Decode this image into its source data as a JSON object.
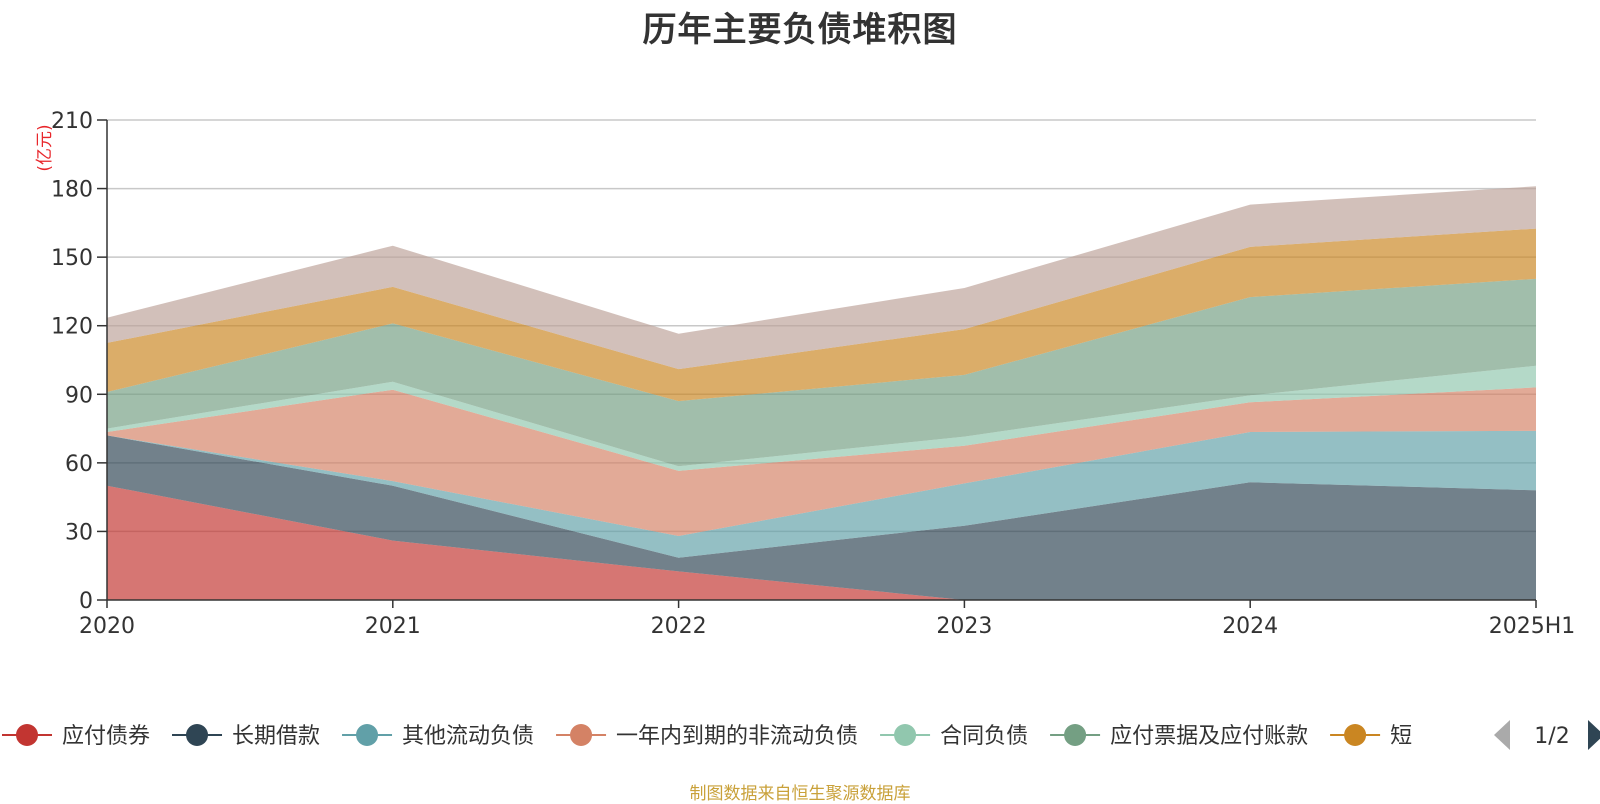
{
  "chart_data": {
    "type": "area",
    "title": "历年主要负债堆积图",
    "ylabel": "(亿元)",
    "xlabel": "",
    "categories": [
      "2020",
      "2021",
      "2022",
      "2023",
      "2024",
      "2025H1"
    ],
    "ylim": [
      0,
      210
    ],
    "yticks": [
      0,
      30,
      60,
      90,
      120,
      150,
      180,
      210
    ],
    "grid": true,
    "stacked": true,
    "legend_position": "bottom",
    "series": [
      {
        "name": "应付债券",
        "values": [
          50,
          26,
          12.5,
          0,
          0,
          0
        ],
        "color": "#c23531"
      },
      {
        "name": "长期借款",
        "values": [
          22,
          24,
          6,
          32.5,
          51.5,
          48
        ],
        "color": "#2f4554"
      },
      {
        "name": "其他流动负债",
        "values": [
          0,
          2,
          9.5,
          18.5,
          22,
          26
        ],
        "color": "#61a0a8"
      },
      {
        "name": "一年内到期的非流动负债",
        "values": [
          1.5,
          40,
          28.5,
          16.5,
          13,
          19
        ],
        "color": "#d48265"
      },
      {
        "name": "合同负债",
        "values": [
          1.5,
          3.5,
          2,
          4,
          3,
          9.5
        ],
        "color": "#91c7ae"
      },
      {
        "name": "应付票据及应付账款",
        "values": [
          16,
          25.5,
          28.5,
          27,
          43,
          38
        ],
        "color": "#749f83"
      },
      {
        "name": "短",
        "values": [
          21.5,
          16,
          14,
          20,
          22,
          22
        ],
        "color": "#ca8622"
      },
      {
        "name": "",
        "values": [
          11,
          18,
          15.5,
          18,
          18.5,
          18.5
        ],
        "color": "#bda29a"
      }
    ]
  },
  "legend": {
    "page_indicator": "1/2",
    "prev_icon": "triangle-left-icon",
    "next_icon": "triangle-right-icon"
  },
  "source_note": "制图数据来自恒生聚源数据库"
}
